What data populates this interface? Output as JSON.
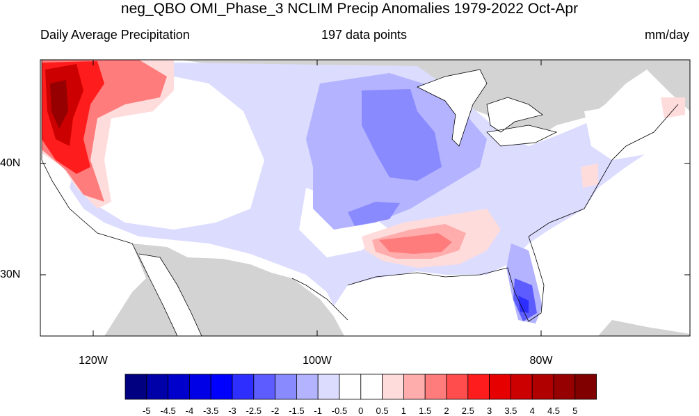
{
  "header": {
    "title": "neg_QBO OMI_Phase_3 NCLIM Precip Anomalies 1979-2022 Oct-Apr",
    "left": "Daily Average Precipitation",
    "center": "197 data points",
    "right": "mm/day"
  },
  "axes": {
    "lat_labels": [
      "40N",
      "30N"
    ],
    "lon_labels": [
      "120W",
      "100W",
      "80W"
    ]
  },
  "colorbar": {
    "labels": [
      "-5",
      "-4.5",
      "-4",
      "-3.5",
      "-3",
      "-2.5",
      "-2",
      "-1.5",
      "-1",
      "-0.5",
      "0",
      "0.5",
      "1",
      "1.5",
      "2",
      "2.5",
      "3",
      "3.5",
      "4",
      "4.5",
      "5"
    ],
    "colors": [
      "#000080",
      "#0000a8",
      "#0000cc",
      "#0000e6",
      "#0000ff",
      "#2e2eff",
      "#5c5cff",
      "#8a8aff",
      "#b3b3ff",
      "#dcdcff",
      "#ffffff",
      "#ffffff",
      "#ffdcdc",
      "#ffacac",
      "#ff7c7c",
      "#ff4c4c",
      "#ff1c1c",
      "#e60000",
      "#cc0000",
      "#b00000",
      "#960000",
      "#800000"
    ]
  },
  "land_color": "#d3d3d3"
}
